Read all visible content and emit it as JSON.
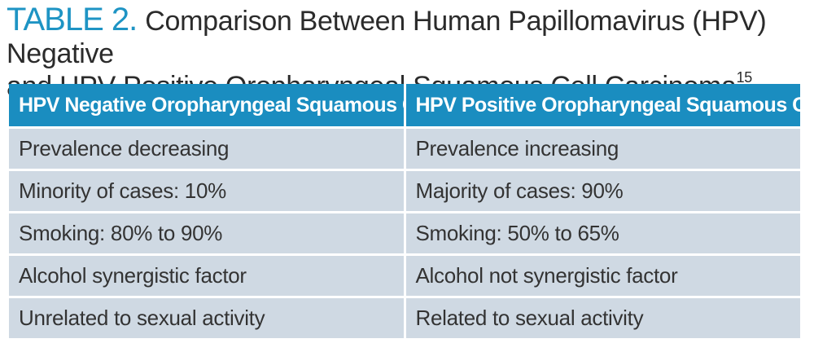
{
  "caption": {
    "label": "TABLE 2.",
    "title_line1": "Comparison Between Human Papillomavirus (HPV) Negative",
    "title_line2": "and HPV Positive Oropharyngeal Squamous Cell Carcinoma",
    "reference": "15"
  },
  "table": {
    "headers": [
      "HPV Negative Oropharyngeal Squamous Cell",
      "HPV Positive Oropharyngeal Squamous Cell"
    ],
    "rows": [
      [
        "Prevalence decreasing",
        "Prevalence increasing"
      ],
      [
        "Minority of cases: 10%",
        "Majority of cases: 90%"
      ],
      [
        "Smoking: 80% to 90%",
        "Smoking: 50% to 65%"
      ],
      [
        "Alcohol synergistic factor",
        "Alcohol not synergistic factor"
      ],
      [
        "Unrelated to sexual activity",
        "Related to sexual activity"
      ]
    ]
  },
  "colors": {
    "label_blue": "#1e94c4",
    "header_blue": "#1a8dc0",
    "cell_bg": "#cfd9e3"
  }
}
